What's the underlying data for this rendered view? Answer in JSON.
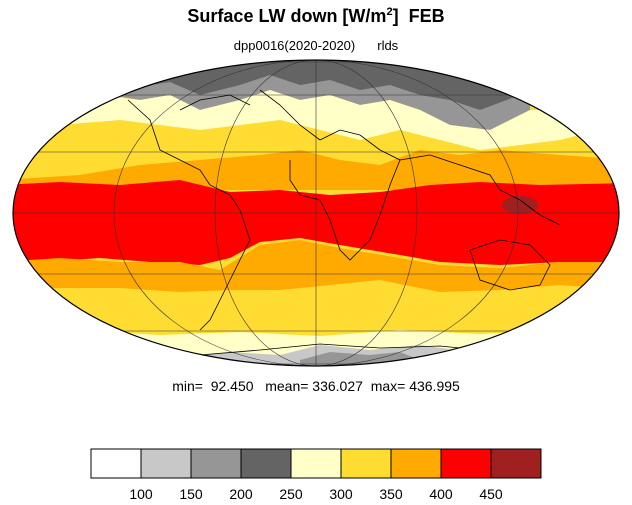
{
  "title": {
    "main": "Surface LW down [W/m",
    "sup": "2",
    "end": "]",
    "month": "FEB"
  },
  "subtitle": {
    "run": "dpp0016(2020-2020)",
    "variable": "rlds"
  },
  "stats": {
    "min_label": "min=",
    "min": "92.450",
    "mean_label": "mean=",
    "mean": "336.027",
    "max_label": "max=",
    "max": "436.995"
  },
  "colorbar": {
    "colors": [
      "#ffffff",
      "#c8c8c8",
      "#969696",
      "#646464",
      "#ffffc8",
      "#ffdc32",
      "#ffaa00",
      "#ff0000",
      "#a02020"
    ],
    "ticks": [
      "100",
      "150",
      "200",
      "250",
      "300",
      "350",
      "400",
      "450"
    ]
  },
  "map": {
    "projection": "mollweide",
    "gridlines": true,
    "coastlines": true
  }
}
